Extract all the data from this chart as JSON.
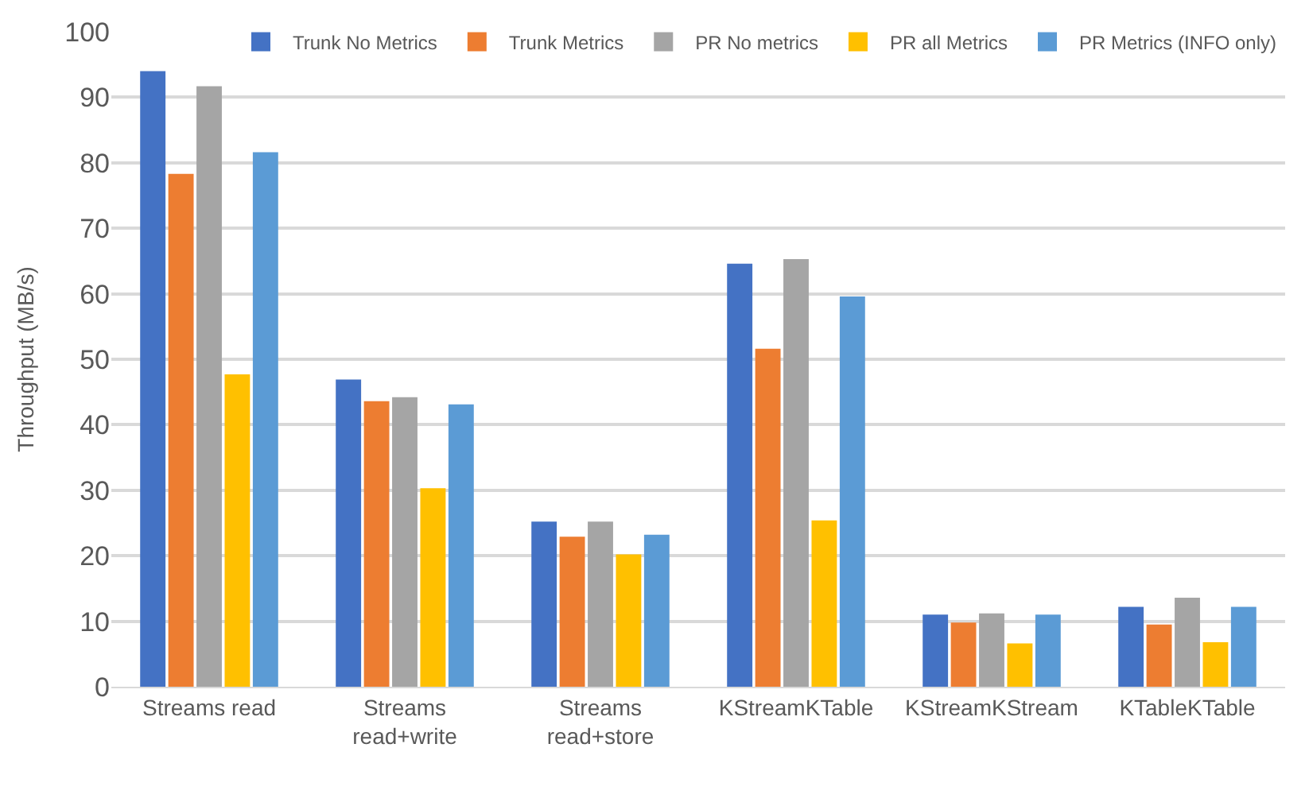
{
  "chart_data": {
    "type": "bar",
    "ylabel": "Throughput (MB/s)",
    "categories": [
      "Streams read",
      "Streams\nread+write",
      "Streams\nread+store",
      "KStreamKTable",
      "KStreamKStream",
      "KTableKTable"
    ],
    "series": [
      {
        "name": "Trunk No Metrics",
        "color": "#4472c4",
        "values": [
          94.0,
          46.9,
          25.2,
          64.6,
          11.0,
          12.2
        ]
      },
      {
        "name": "Trunk Metrics",
        "color": "#ed7d31",
        "values": [
          78.3,
          43.6,
          22.9,
          51.6,
          9.8,
          9.5
        ]
      },
      {
        "name": "PR No metrics",
        "color": "#a5a5a5",
        "values": [
          91.7,
          44.2,
          25.2,
          65.3,
          11.2,
          13.6
        ]
      },
      {
        "name": "PR all Metrics",
        "color": "#ffc000",
        "values": [
          47.7,
          30.3,
          20.2,
          25.4,
          6.6,
          6.8
        ]
      },
      {
        "name": "PR Metrics (INFO only)",
        "color": "#5b9bd5",
        "values": [
          81.6,
          43.1,
          23.2,
          59.6,
          11.0,
          12.2
        ]
      }
    ],
    "ylim": [
      0,
      100
    ],
    "yticks": [
      0,
      10,
      20,
      30,
      40,
      50,
      60,
      70,
      80,
      90,
      100
    ],
    "grid": "y",
    "legend": "top right"
  }
}
